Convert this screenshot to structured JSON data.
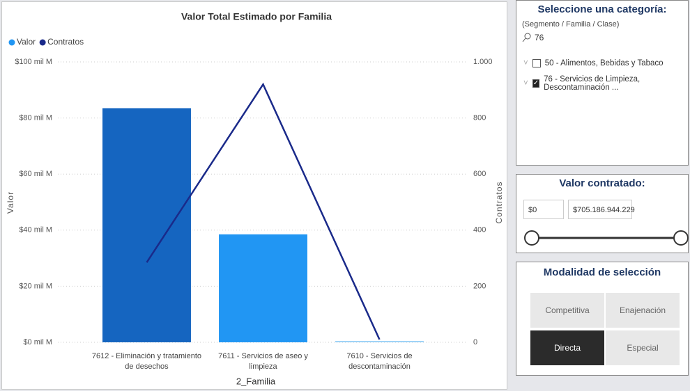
{
  "chart_data": {
    "type": "combo",
    "title": "Valor Total Estimado por Familia",
    "legend": "top-left",
    "x_label": "2_Familia",
    "y_label": "Valor",
    "y2_label": "Contratos",
    "categories": [
      "7612 - Eliminación y tratamiento de desechos",
      "7611 - Servicios de aseo y limpieza",
      "7610 - Servicios de descontaminación"
    ],
    "series": [
      {
        "name": "Valor",
        "type": "bar",
        "color": "#2196f3",
        "colors": [
          "#1565c0",
          "#2196f3",
          "#9fd3f7"
        ],
        "values": [
          83.5,
          38.5,
          0.5
        ]
      },
      {
        "name": "Contratos",
        "type": "line",
        "axis": "y2",
        "color": "#1a2a8a",
        "values": [
          285,
          920,
          10
        ]
      }
    ],
    "ylim": [
      0,
      100
    ],
    "yticks": [
      {
        "value": 0,
        "label": "$0 mil M"
      },
      {
        "value": 20,
        "label": "$20 mil M"
      },
      {
        "value": 40,
        "label": "$40 mil M"
      },
      {
        "value": 60,
        "label": "$60 mil M"
      },
      {
        "value": 80,
        "label": "$80 mil M"
      },
      {
        "value": 100,
        "label": "$100 mil M"
      }
    ],
    "y2lim": [
      0,
      1000
    ],
    "y2ticks": [
      0,
      200,
      400,
      600,
      800,
      {
        "value": 1000,
        "label": "1.000"
      }
    ],
    "grid": true
  },
  "category_panel": {
    "title": "Seleccione una categoría:",
    "subtitle": "(Segmento / Familia / Clase)",
    "search": "76",
    "items": [
      {
        "label": "50 - Alimentos, Bebidas y Tabaco",
        "checked": false
      },
      {
        "label": "76 - Servicios de Limpieza, Descontaminación ...",
        "checked": true
      }
    ]
  },
  "value_panel": {
    "title": "Valor contratado:",
    "min": "$0",
    "max": "$705.186.944.229"
  },
  "mode_panel": {
    "title": "Modalidad de selección",
    "buttons": [
      {
        "label": "Competitiva",
        "selected": false
      },
      {
        "label": "Enajenación",
        "selected": false
      },
      {
        "label": "Directa",
        "selected": true
      },
      {
        "label": "Especial",
        "selected": false
      }
    ]
  }
}
